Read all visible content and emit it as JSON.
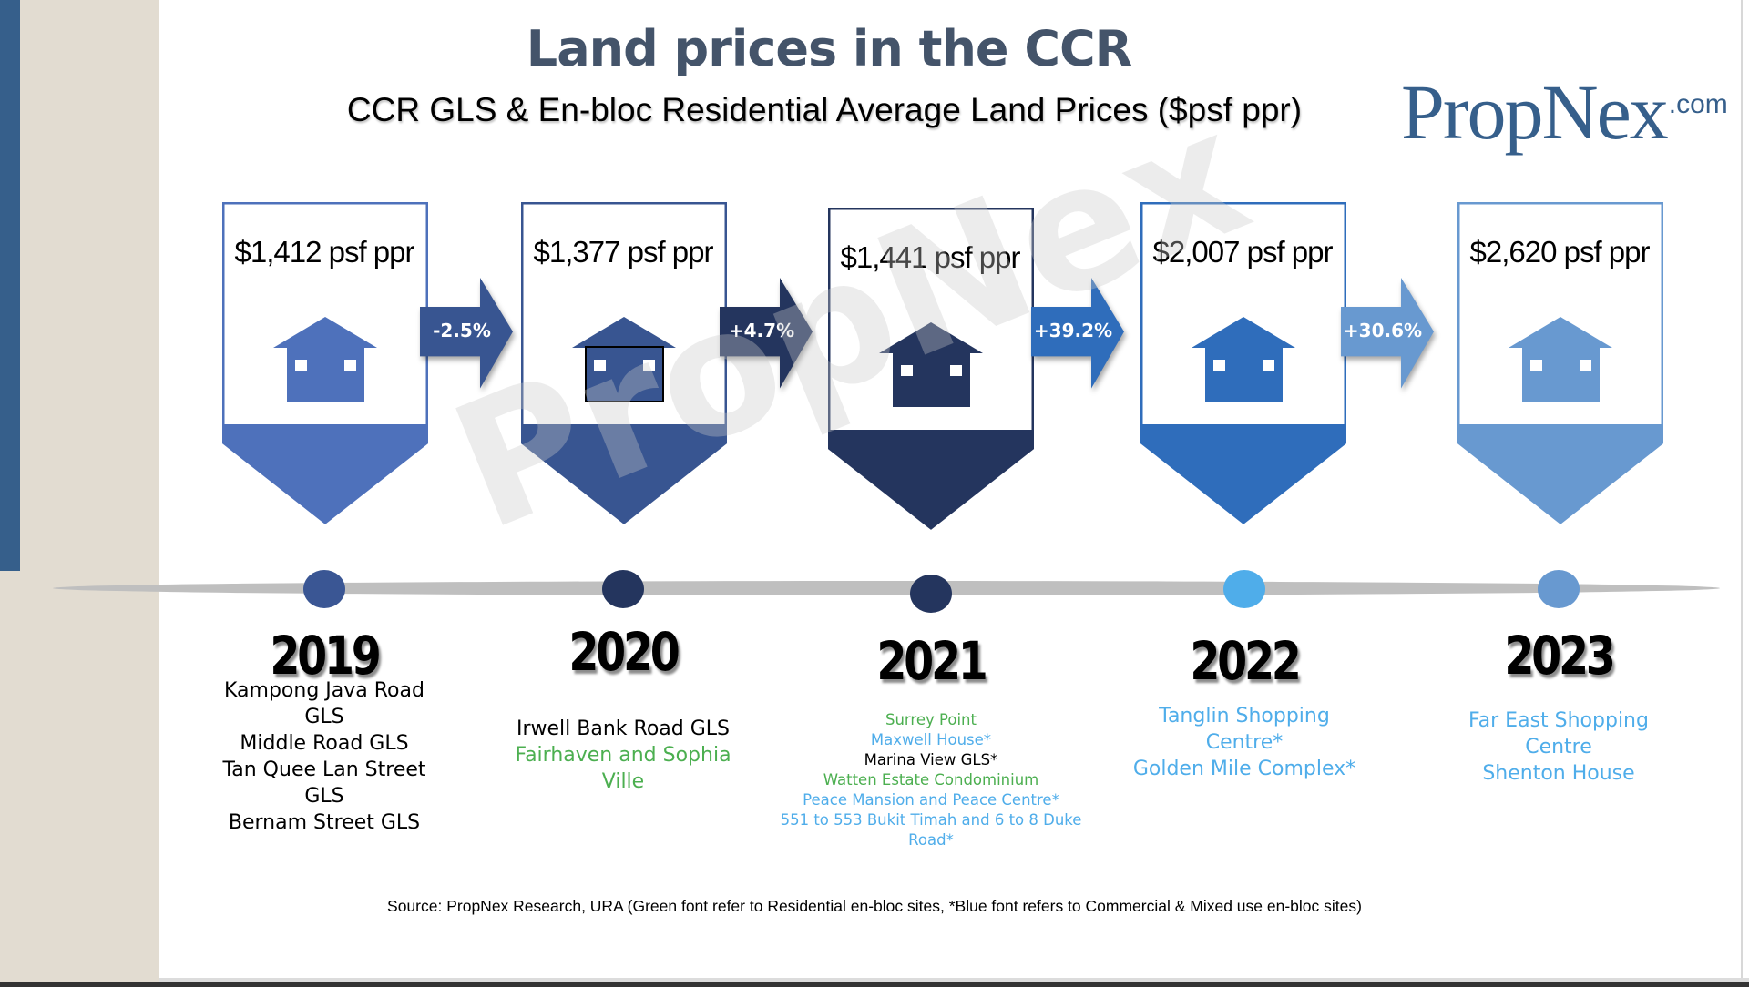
{
  "header": {
    "title": "Land prices in the CCR",
    "subtitle": "CCR GLS & En-bloc Residential Average Land Prices ($psf ppr)",
    "logo_main": "PropNex",
    "logo_suffix": ".com"
  },
  "watermark": "PropNex",
  "colors": {
    "residential_green": "#4caf50",
    "commercial_blue": "#4fadea",
    "gls_black": "#000000",
    "title": "#44546a",
    "timeline": "#bfbfbf"
  },
  "chart_data": {
    "type": "table",
    "title": "Land prices in the CCR",
    "subtitle": "CCR GLS & En-bloc Residential Average Land Prices ($psf ppr)",
    "unit": "$psf ppr",
    "categories": [
      "2019",
      "2020",
      "2021",
      "2022",
      "2023"
    ],
    "values": [
      1412,
      1377,
      1441,
      2007,
      2620
    ],
    "changes_pct": [
      -2.5,
      4.7,
      39.2,
      30.6
    ]
  },
  "years": [
    {
      "year": "2019",
      "price_label": "$1,412 psf ppr",
      "color": "#4e71bb",
      "dot_color": "#3a5694",
      "sites": [
        {
          "name": "Kampong Java Road GLS",
          "type": "gls"
        },
        {
          "name": "Middle Road GLS",
          "type": "gls"
        },
        {
          "name": "Tan Quee Lan Street GLS",
          "type": "gls"
        },
        {
          "name": "Bernam Street GLS",
          "type": "gls"
        }
      ]
    },
    {
      "year": "2020",
      "price_label": "$1,377 psf ppr",
      "color": "#385591",
      "dot_color": "#24355e",
      "sites": [
        {
          "name": "Irwell Bank Road GLS",
          "type": "gls"
        },
        {
          "name": "Fairhaven and Sophia Ville",
          "type": "residential"
        }
      ]
    },
    {
      "year": "2021",
      "price_label": "$1,441 psf ppr",
      "color": "#24355e",
      "dot_color": "#24355e",
      "sites": [
        {
          "name": "Surrey Point",
          "type": "residential"
        },
        {
          "name": "Maxwell House*",
          "type": "commercial"
        },
        {
          "name": "Marina View GLS*",
          "type": "gls"
        },
        {
          "name": "Watten Estate Condominium",
          "type": "residential"
        },
        {
          "name": "Peace Mansion and Peace Centre*",
          "type": "commercial"
        },
        {
          "name": "551 to 553 Bukit Timah and 6 to 8 Duke Road*",
          "type": "commercial"
        }
      ]
    },
    {
      "year": "2022",
      "price_label": "$2,007 psf ppr",
      "color": "#2f6dbb",
      "dot_color": "#4fadea",
      "sites": [
        {
          "name": "Tanglin Shopping Centre*",
          "type": "commercial"
        },
        {
          "name": "Golden Mile Complex*",
          "type": "commercial"
        }
      ]
    },
    {
      "year": "2023",
      "price_label": "$2,620 psf ppr",
      "color": "#6899d0",
      "dot_color": "#6899d0",
      "sites": [
        {
          "name": "Far East Shopping Centre",
          "type": "commercial"
        },
        {
          "name": "Shenton House",
          "type": "commercial"
        }
      ]
    }
  ],
  "changes": [
    {
      "label": "-2.5%",
      "color": "#385591"
    },
    {
      "label": "+4.7%",
      "color": "#24355e"
    },
    {
      "label": "+39.2%",
      "color": "#2f6dbb"
    },
    {
      "label": "+30.6%",
      "color": "#6899d0"
    }
  ],
  "footer": {
    "source": "Source: PropNex Research, URA (Green font refer to Residential en-bloc sites, *Blue font refers to Commercial & Mixed use en-bloc sites)"
  }
}
